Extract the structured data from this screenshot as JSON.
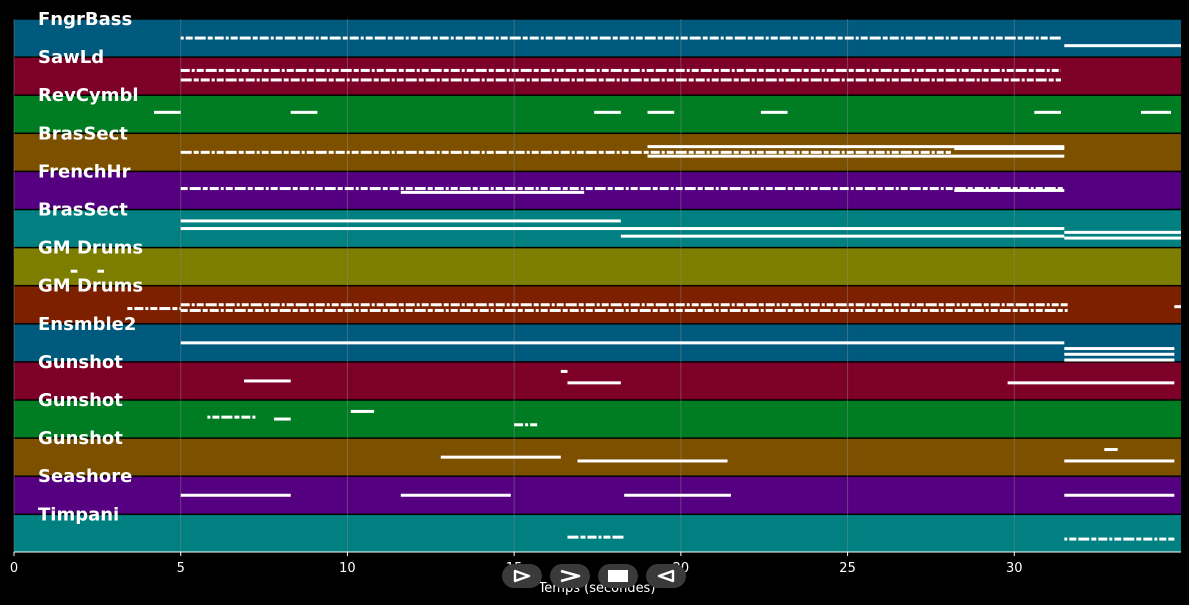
{
  "axis": {
    "title": "Temps (secondes)",
    "ticks": [
      "0",
      "5",
      "10",
      "15",
      "20",
      "25",
      "30"
    ],
    "xmax": 35
  },
  "colors": {
    "background": "#000000",
    "grid": "#8a8a8a",
    "note": "#ffffff",
    "control_bg": "#3a3a3a"
  },
  "controls": [
    {
      "name": "play-icon",
      "label": "play"
    },
    {
      "name": "fast-forward-icon",
      "label": "forward"
    },
    {
      "name": "stop-icon",
      "label": "stop"
    },
    {
      "name": "rewind-icon",
      "label": "back"
    }
  ],
  "tracks": [
    {
      "name": "FngrBass",
      "color": "#005a7d",
      "notes": [
        [
          5.0,
          31.4,
          0.5,
          "dash"
        ],
        [
          31.5,
          35.0,
          0.7,
          "solid"
        ]
      ]
    },
    {
      "name": "SawLd",
      "color": "#7d0028",
      "notes": [
        [
          5.0,
          31.4,
          0.35,
          "dash"
        ],
        [
          5.0,
          31.4,
          0.6,
          "dash"
        ]
      ]
    },
    {
      "name": "RevCymbl",
      "color": "#007d23",
      "notes": [
        [
          4.2,
          5.0,
          0.45,
          "solid"
        ],
        [
          8.3,
          9.1,
          0.45,
          "solid"
        ],
        [
          17.4,
          18.2,
          0.45,
          "solid"
        ],
        [
          19.0,
          19.8,
          0.45,
          "solid"
        ],
        [
          22.4,
          23.2,
          0.45,
          "solid"
        ],
        [
          30.6,
          31.4,
          0.45,
          "solid"
        ],
        [
          33.8,
          34.7,
          0.45,
          "solid"
        ]
      ]
    },
    {
      "name": "BrasSect",
      "color": "#7d5000",
      "notes": [
        [
          5.0,
          28.1,
          0.5,
          "dash"
        ],
        [
          19.0,
          31.5,
          0.35,
          "solid"
        ],
        [
          19.0,
          31.5,
          0.6,
          "solid"
        ],
        [
          28.2,
          31.5,
          0.4,
          "solid"
        ]
      ]
    },
    {
      "name": "FrenchHr",
      "color": "#550080",
      "notes": [
        [
          5.0,
          31.5,
          0.45,
          "dash"
        ],
        [
          11.6,
          17.1,
          0.55,
          "solid"
        ],
        [
          28.2,
          31.5,
          0.5,
          "solid"
        ]
      ]
    },
    {
      "name": "BrasSect",
      "color": "#008080",
      "notes": [
        [
          5.0,
          31.5,
          0.5,
          "solid"
        ],
        [
          5.0,
          18.2,
          0.3,
          "solid"
        ],
        [
          18.2,
          31.5,
          0.7,
          "solid"
        ],
        [
          31.5,
          35.0,
          0.6,
          "solid"
        ],
        [
          31.5,
          35.0,
          0.75,
          "solid"
        ]
      ]
    },
    {
      "name": "GM Drums",
      "color": "#7d7d00",
      "notes": [
        [
          1.7,
          1.9,
          0.62,
          "solid"
        ],
        [
          2.5,
          2.7,
          0.62,
          "solid"
        ]
      ]
    },
    {
      "name": "GM Drums",
      "color": "#7d2000",
      "notes": [
        [
          3.4,
          5.0,
          0.6,
          "dash"
        ],
        [
          5.0,
          31.6,
          0.65,
          "dash"
        ],
        [
          5.0,
          31.6,
          0.5,
          "dash"
        ],
        [
          34.8,
          35.0,
          0.55,
          "solid"
        ]
      ]
    },
    {
      "name": "Ensmble2",
      "color": "#005a7d",
      "notes": [
        [
          5.0,
          31.5,
          0.5,
          "solid"
        ],
        [
          31.5,
          34.8,
          0.65,
          "solid"
        ],
        [
          31.5,
          34.8,
          0.8,
          "solid"
        ],
        [
          31.5,
          34.8,
          0.95,
          "solid"
        ]
      ]
    },
    {
      "name": "Gunshot",
      "color": "#7d0028",
      "notes": [
        [
          6.9,
          8.3,
          0.5,
          "solid"
        ],
        [
          16.4,
          16.6,
          0.25,
          "solid"
        ],
        [
          16.6,
          18.2,
          0.55,
          "solid"
        ],
        [
          29.8,
          34.8,
          0.55,
          "solid"
        ]
      ]
    },
    {
      "name": "Gunshot",
      "color": "#007d23",
      "notes": [
        [
          5.8,
          7.3,
          0.45,
          "dash"
        ],
        [
          7.8,
          8.3,
          0.5,
          "solid"
        ],
        [
          10.1,
          10.8,
          0.3,
          "solid"
        ],
        [
          15.0,
          15.7,
          0.65,
          "dash"
        ]
      ]
    },
    {
      "name": "Gunshot",
      "color": "#7d5000",
      "notes": [
        [
          12.8,
          16.4,
          0.5,
          "solid"
        ],
        [
          16.9,
          21.4,
          0.6,
          "solid"
        ],
        [
          31.5,
          34.8,
          0.6,
          "solid"
        ],
        [
          32.7,
          33.1,
          0.3,
          "solid"
        ]
      ]
    },
    {
      "name": "Seashore",
      "color": "#550080",
      "notes": [
        [
          5.0,
          8.3,
          0.5,
          "solid"
        ],
        [
          11.6,
          14.9,
          0.5,
          "solid"
        ],
        [
          18.3,
          21.5,
          0.5,
          "solid"
        ],
        [
          31.5,
          34.8,
          0.5,
          "solid"
        ]
      ]
    },
    {
      "name": "Timpani",
      "color": "#008080",
      "notes": [
        [
          16.6,
          18.3,
          0.6,
          "dash"
        ],
        [
          31.5,
          34.8,
          0.65,
          "dash"
        ]
      ]
    }
  ]
}
